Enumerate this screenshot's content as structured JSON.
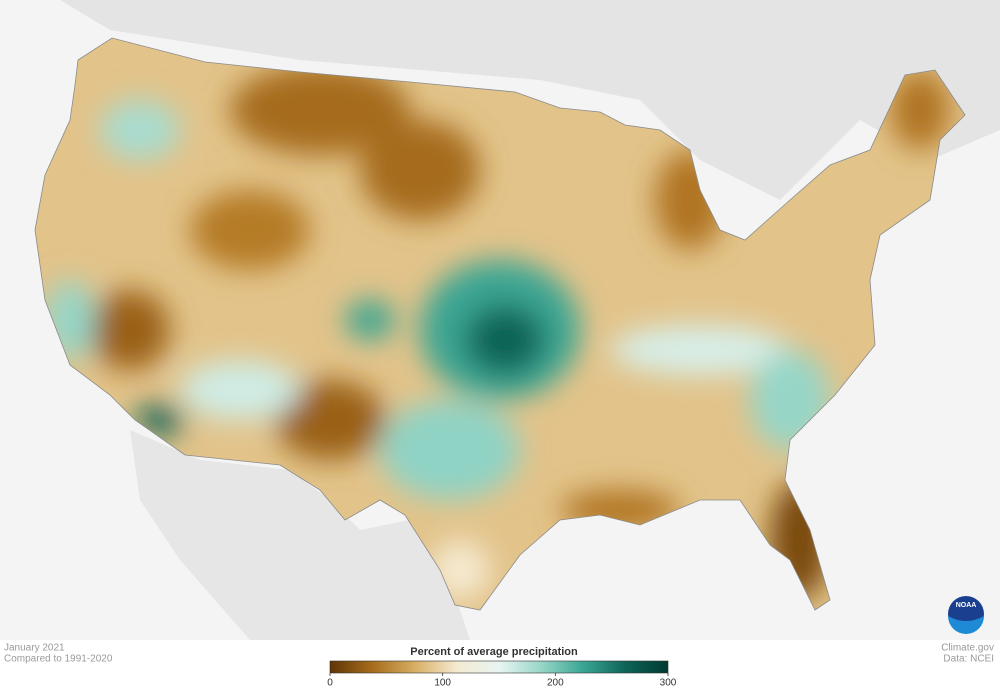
{
  "map": {
    "date": "January 2021",
    "baseline": "Compared to 1991-2020",
    "credit": "Climate.gov",
    "source": "Data: NCEI",
    "logo": "NOAA",
    "legend": {
      "title": "Percent of average precipitation",
      "range": [
        0,
        300
      ],
      "ticks": [
        0,
        100,
        200,
        300
      ],
      "colors": [
        "#5e3505",
        "#a66c1c",
        "#d7ae63",
        "#f5ead0",
        "#e8f5f2",
        "#96d6c8",
        "#3aa593",
        "#0d6457",
        "#013a31"
      ]
    }
  }
}
